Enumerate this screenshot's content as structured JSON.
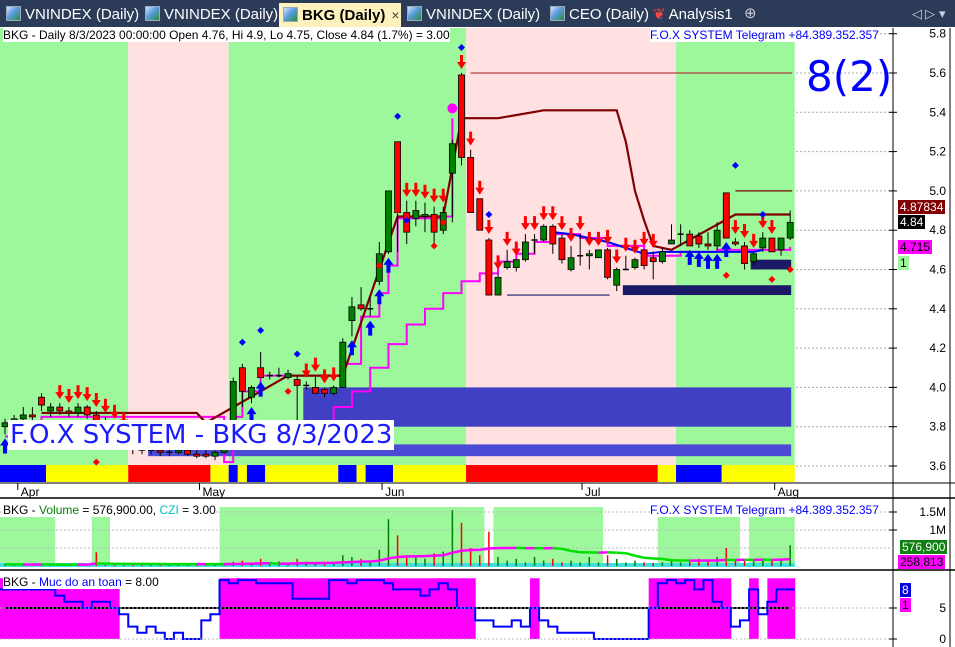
{
  "tabs": [
    {
      "label": "VNINDEX (Daily)",
      "active": false
    },
    {
      "label": "VNINDEX (Daily)",
      "active": false
    },
    {
      "label": "BKG (Daily)",
      "active": true
    },
    {
      "label": "VNINDEX (Daily)",
      "active": false
    },
    {
      "label": "CEO (Daily)",
      "active": false
    },
    {
      "label": "Analysis1",
      "active": false
    }
  ],
  "tab_close": "×",
  "tab_add": "⊕",
  "tab_nav": {
    "left": "◁",
    "right": "▷",
    "menu": "▾"
  },
  "price_panel": {
    "header": "BKG - Daily 8/3/2023 00:00:00 Open 4.76, Hi 4.9, Lo 4.75, Close 4.84 (1.7%)   = 3.00",
    "telegram": "F.O.X SYSTEM Telegram +84.389.352.357",
    "signal_big": "8(2)",
    "watermark": "F.O.X SYSTEM - BKG 8/3/2023",
    "labels": {
      "upper": "4.87834",
      "close": "4.84",
      "stop": "4.715",
      "count": "1"
    },
    "y_ticks": [
      "3.6",
      "3.8",
      "4.0",
      "4.2",
      "4.4",
      "4.6",
      "4.8",
      "5.0",
      "5.2",
      "5.4",
      "5.6",
      "5.8"
    ],
    "date_labels": [
      {
        "label": "Apr",
        "bar": 1.4
      },
      {
        "label": "May",
        "bar": 21.3
      },
      {
        "label": "Jun",
        "bar": 41.3
      },
      {
        "label": "Jul",
        "bar": 63.2
      },
      {
        "label": "Aug",
        "bar": 84.3
      }
    ]
  },
  "volume_panel": {
    "h_prefix": "BKG - ",
    "h_vol": "Volume",
    "h_mid": " = 576,900.00, ",
    "h_czi": "CZI",
    "h_end": " = 3.00",
    "telegram": "F.O.X SYSTEM Telegram +84.389.352.357",
    "labels": {
      "volume": "576,900",
      "ma": "258,813"
    },
    "y_ticks": [
      {
        "label": "1.5M",
        "v": 1500
      },
      {
        "label": "1M",
        "v": 1000
      }
    ]
  },
  "safety_panel": {
    "h_prefix": "BKG - ",
    "h_name": "Muc do an toan",
    "h_end": " = 8.00",
    "labels": {
      "value": "8",
      "flag": "1"
    },
    "y_ticks": [
      {
        "label": "0",
        "v": 0
      },
      {
        "label": "5",
        "v": 5
      }
    ]
  },
  "colors": {
    "up": "#008000",
    "down": "#ff0000",
    "bull_bg": "#9cf89a",
    "bear_bg": "#ffe1e1",
    "magenta": "#ff00ff",
    "darkred": "#800000",
    "blue": "#0000ff",
    "navy": "#1a1a66",
    "accent_text": "#0000ff"
  },
  "chart_data": {
    "type": "candlestick",
    "ylim": [
      3.55,
      5.85
    ],
    "ohlc": [
      [
        3.8,
        3.84,
        3.76,
        3.82
      ],
      [
        3.82,
        3.86,
        3.8,
        3.84
      ],
      [
        3.84,
        3.9,
        3.82,
        3.86
      ],
      [
        3.86,
        3.9,
        3.83,
        3.85
      ],
      [
        3.95,
        3.97,
        3.88,
        3.91
      ],
      [
        3.88,
        3.92,
        3.85,
        3.9
      ],
      [
        3.9,
        3.92,
        3.86,
        3.88
      ],
      [
        3.88,
        3.9,
        3.85,
        3.87
      ],
      [
        3.87,
        3.92,
        3.85,
        3.9
      ],
      [
        3.9,
        3.91,
        3.84,
        3.86
      ],
      [
        3.86,
        3.88,
        3.8,
        3.82
      ],
      [
        3.82,
        3.85,
        3.78,
        3.8
      ],
      [
        3.8,
        3.82,
        3.74,
        3.76
      ],
      [
        3.76,
        3.78,
        3.7,
        3.72
      ],
      [
        3.72,
        3.74,
        3.66,
        3.7
      ],
      [
        3.7,
        3.72,
        3.66,
        3.68
      ],
      [
        3.68,
        3.7,
        3.66,
        3.68
      ],
      [
        3.68,
        3.7,
        3.65,
        3.67
      ],
      [
        3.67,
        3.69,
        3.65,
        3.67
      ],
      [
        3.67,
        3.7,
        3.66,
        3.68
      ],
      [
        3.68,
        3.7,
        3.65,
        3.66
      ],
      [
        3.66,
        3.68,
        3.64,
        3.65
      ],
      [
        3.66,
        3.68,
        3.64,
        3.65
      ],
      [
        3.65,
        3.68,
        3.63,
        3.67
      ],
      [
        3.67,
        3.7,
        3.66,
        3.7
      ],
      [
        3.72,
        4.05,
        3.7,
        4.03
      ],
      [
        4.1,
        4.12,
        3.9,
        3.98
      ],
      [
        3.95,
        4.01,
        3.92,
        4.0
      ],
      [
        4.1,
        4.18,
        4.05,
        4.05
      ],
      [
        4.06,
        4.08,
        4.04,
        4.06
      ],
      [
        4.06,
        4.1,
        4.05,
        4.06
      ],
      [
        4.05,
        4.09,
        4.04,
        4.07
      ],
      [
        4.04,
        4.06,
        3.78,
        4.01
      ],
      [
        4.01,
        4.03,
        3.99,
        4.01
      ],
      [
        4.0,
        4.06,
        3.97,
        3.97
      ],
      [
        3.99,
        4.0,
        3.95,
        3.97
      ],
      [
        3.97,
        4.01,
        3.96,
        4.0
      ],
      [
        4.0,
        4.25,
        4.0,
        4.23
      ],
      [
        4.34,
        4.46,
        4.26,
        4.41
      ],
      [
        4.42,
        4.51,
        4.39,
        4.4
      ],
      [
        4.4,
        4.46,
        4.36,
        4.4
      ],
      [
        4.54,
        4.74,
        4.52,
        4.68
      ],
      [
        4.69,
        5.0,
        4.68,
        5.0
      ],
      [
        5.25,
        5.25,
        4.69,
        4.89
      ],
      [
        4.89,
        4.95,
        4.73,
        4.79
      ],
      [
        4.86,
        4.95,
        4.82,
        4.9
      ],
      [
        4.87,
        4.94,
        4.79,
        4.88
      ],
      [
        4.88,
        4.92,
        4.72,
        4.79
      ],
      [
        4.8,
        4.92,
        4.78,
        4.89
      ],
      [
        5.09,
        5.26,
        4.84,
        5.24
      ],
      [
        5.59,
        5.6,
        5.13,
        5.17
      ],
      [
        5.17,
        5.21,
        4.89,
        4.89
      ],
      [
        4.96,
        4.96,
        4.8,
        4.8
      ],
      [
        4.75,
        4.76,
        4.47,
        4.47
      ],
      [
        4.47,
        4.58,
        4.47,
        4.56
      ],
      [
        4.61,
        4.7,
        4.6,
        4.64
      ],
      [
        4.61,
        4.65,
        4.59,
        4.65
      ],
      [
        4.65,
        4.78,
        4.64,
        4.74
      ],
      [
        4.75,
        4.78,
        4.68,
        4.75
      ],
      [
        4.75,
        4.83,
        4.74,
        4.82
      ],
      [
        4.82,
        4.83,
        4.68,
        4.73
      ],
      [
        4.76,
        4.78,
        4.63,
        4.65
      ],
      [
        4.6,
        4.72,
        4.59,
        4.66
      ],
      [
        4.67,
        4.78,
        4.62,
        4.67
      ],
      [
        4.67,
        4.7,
        4.6,
        4.68
      ],
      [
        4.66,
        4.7,
        4.66,
        4.7
      ],
      [
        4.7,
        4.71,
        4.55,
        4.56
      ],
      [
        4.52,
        4.61,
        4.49,
        4.6
      ],
      [
        4.6,
        4.67,
        4.6,
        4.6
      ],
      [
        4.61,
        4.66,
        4.6,
        4.65
      ],
      [
        4.7,
        4.7,
        4.6,
        4.62
      ],
      [
        4.66,
        4.69,
        4.55,
        4.64
      ],
      [
        4.64,
        4.71,
        4.63,
        4.69
      ],
      [
        4.73,
        4.83,
        4.73,
        4.75
      ],
      [
        4.78,
        4.83,
        4.72,
        4.78
      ],
      [
        4.78,
        4.8,
        4.72,
        4.72
      ],
      [
        4.77,
        4.79,
        4.71,
        4.73
      ],
      [
        4.73,
        4.79,
        4.7,
        4.72
      ],
      [
        4.72,
        4.84,
        4.7,
        4.8
      ],
      [
        4.99,
        4.99,
        4.76,
        4.76
      ],
      [
        4.74,
        4.76,
        4.72,
        4.73
      ],
      [
        4.72,
        4.74,
        4.6,
        4.63
      ],
      [
        4.64,
        4.69,
        4.62,
        4.68
      ],
      [
        4.71,
        4.79,
        4.69,
        4.76
      ],
      [
        4.76,
        4.76,
        4.69,
        4.69
      ],
      [
        4.7,
        4.76,
        4.67,
        4.76
      ],
      [
        4.76,
        4.9,
        4.75,
        4.84
      ]
    ],
    "regime_bands": [
      {
        "from": 0,
        "to": 13,
        "state": "bull"
      },
      {
        "from": 14,
        "to": 24,
        "state": "bear"
      },
      {
        "from": 25,
        "to": 50,
        "state": "bull"
      },
      {
        "from": 51,
        "to": 73,
        "state": "bear"
      },
      {
        "from": 74,
        "to": 86,
        "state": "bull"
      }
    ],
    "trend_strip": [
      {
        "from": 0,
        "to": 4,
        "color": "#0000ff"
      },
      {
        "from": 5,
        "to": 13,
        "color": "#ffff00"
      },
      {
        "from": 14,
        "to": 22,
        "color": "#ff0000"
      },
      {
        "from": 23,
        "to": 24,
        "color": "#ffff00"
      },
      {
        "from": 25,
        "to": 25,
        "color": "#0000ff"
      },
      {
        "from": 26,
        "to": 26,
        "color": "#ffff00"
      },
      {
        "from": 27,
        "to": 28,
        "color": "#0000ff"
      },
      {
        "from": 29,
        "to": 36,
        "color": "#ffff00"
      },
      {
        "from": 37,
        "to": 38,
        "color": "#0000ff"
      },
      {
        "from": 39,
        "to": 39,
        "color": "#ffff00"
      },
      {
        "from": 40,
        "to": 42,
        "color": "#0000ff"
      },
      {
        "from": 43,
        "to": 50,
        "color": "#ffff00"
      },
      {
        "from": 51,
        "to": 71,
        "color": "#ff0000"
      },
      {
        "from": 72,
        "to": 73,
        "color": "#ffff00"
      },
      {
        "from": 74,
        "to": 78,
        "color": "#0000ff"
      },
      {
        "from": 79,
        "to": 86,
        "color": "#ffff00"
      }
    ],
    "zones": [
      {
        "from": 33,
        "to": 86,
        "top": 4.0,
        "bottom": 3.8,
        "color": "#4040c4"
      },
      {
        "from": 16,
        "to": 86,
        "top": 3.71,
        "bottom": 3.65,
        "color": "#4a4ad4"
      },
      {
        "from": 68,
        "to": 86,
        "top": 4.52,
        "bottom": 4.47,
        "color": "#1a1a66"
      },
      {
        "from": 82,
        "to": 86,
        "top": 4.65,
        "bottom": 4.6,
        "color": "#1a1a66"
      }
    ],
    "hlines": [
      {
        "from": 51,
        "to": 86,
        "price": 5.6,
        "color": "#b04040"
      },
      {
        "from": 80,
        "to": 86,
        "price": 5.0,
        "color": "#800000"
      },
      {
        "from": 55,
        "to": 66,
        "price": 4.47,
        "color": "#1a1a66"
      }
    ],
    "upper_line": [
      [
        4,
        3.87
      ],
      [
        21,
        3.87
      ],
      [
        22,
        3.82
      ],
      [
        31,
        4.06
      ],
      [
        37,
        4.06
      ],
      [
        43,
        4.87
      ],
      [
        48,
        4.87
      ],
      [
        50,
        5.37
      ],
      [
        54,
        5.37
      ],
      [
        59,
        5.41
      ],
      [
        67,
        5.41
      ],
      [
        68,
        5.25
      ],
      [
        69,
        5.0
      ],
      [
        70,
        4.85
      ],
      [
        71,
        4.72
      ],
      [
        73,
        4.7
      ],
      [
        80,
        4.88
      ],
      [
        86,
        4.88
      ]
    ],
    "trail_line": [
      [
        0,
        3.75
      ],
      [
        4,
        3.85
      ],
      [
        22,
        3.85
      ],
      [
        24,
        3.62
      ],
      [
        25,
        3.85
      ],
      [
        26,
        3.98
      ],
      [
        28,
        4.06
      ],
      [
        36,
        4.06
      ],
      [
        37,
        4.12
      ],
      [
        39,
        4.36
      ],
      [
        41,
        4.48
      ],
      [
        42,
        4.62
      ],
      [
        43,
        4.86
      ],
      [
        48,
        4.87
      ],
      [
        49,
        5.37
      ]
    ],
    "support_line": [
      [
        32,
        3.78
      ],
      [
        34,
        3.82
      ],
      [
        36,
        3.9
      ],
      [
        38,
        3.98
      ],
      [
        40,
        4.1
      ],
      [
        42,
        4.22
      ],
      [
        44,
        4.32
      ],
      [
        46,
        4.4
      ],
      [
        48,
        4.48
      ],
      [
        50,
        4.54
      ],
      [
        52,
        4.58
      ],
      [
        54,
        4.64
      ],
      [
        56,
        4.68
      ],
      [
        58,
        4.74
      ],
      [
        60,
        4.78
      ],
      [
        63,
        4.76
      ],
      [
        66,
        4.72
      ],
      [
        70,
        4.67
      ],
      [
        74,
        4.69
      ],
      [
        78,
        4.7
      ],
      [
        82,
        4.7
      ],
      [
        86,
        4.715
      ]
    ],
    "blue_line": [
      [
        60,
        4.79
      ],
      [
        62,
        4.78
      ],
      [
        64,
        4.76
      ],
      [
        66,
        4.74
      ],
      [
        68,
        4.71
      ],
      [
        70,
        4.68
      ],
      [
        72,
        4.69
      ],
      [
        82,
        4.69
      ],
      [
        83,
        4.7
      ]
    ],
    "sell_arrows": [
      6,
      7,
      8,
      9,
      10,
      11,
      12,
      13,
      14,
      15,
      33,
      34,
      35,
      36,
      44,
      45,
      46,
      47,
      48,
      50,
      51,
      52,
      53,
      54,
      55,
      56,
      57,
      58,
      59,
      60,
      61,
      62,
      63,
      64,
      65,
      66,
      67,
      68,
      69,
      70,
      71,
      80,
      81,
      82,
      83,
      84
    ],
    "buy_arrows": [
      0,
      2,
      3,
      27,
      28,
      38,
      40,
      41,
      42,
      75,
      76,
      77,
      78,
      79
    ],
    "blue_dots": [
      [
        26,
        4.23
      ],
      [
        28,
        4.29
      ],
      [
        32,
        4.17
      ],
      [
        43,
        5.38
      ],
      [
        44,
        4.85
      ],
      [
        50,
        5.73
      ],
      [
        53,
        4.88
      ],
      [
        80,
        5.13
      ],
      [
        83,
        4.88
      ]
    ],
    "red_dots": [
      [
        10,
        3.62
      ],
      [
        31,
        3.98
      ],
      [
        35,
        4.06
      ],
      [
        41,
        4.62
      ],
      [
        43,
        4.9
      ],
      [
        47,
        4.72
      ],
      [
        48,
        4.84
      ],
      [
        79,
        4.57
      ],
      [
        84,
        4.55
      ],
      [
        86,
        4.6
      ]
    ],
    "big_dot": [
      49,
      5.42
    ],
    "volume": [
      50,
      40,
      30,
      40,
      50,
      30,
      30,
      30,
      30,
      40,
      380,
      40,
      30,
      30,
      30,
      40,
      30,
      40,
      30,
      40,
      30,
      30,
      40,
      30,
      40,
      120,
      150,
      80,
      200,
      100,
      130,
      90,
      200,
      120,
      90,
      110,
      100,
      300,
      250,
      200,
      150,
      450,
      1300,
      850,
      300,
      250,
      200,
      350,
      400,
      1550,
      1200,
      500,
      300,
      950,
      250,
      150,
      200,
      100,
      250,
      150,
      200,
      100,
      150,
      100,
      250,
      100,
      300,
      200,
      100,
      150,
      100,
      80,
      100,
      150,
      100,
      120,
      200,
      150,
      250,
      500,
      150,
      200,
      130,
      200,
      150,
      200,
      577
    ],
    "volume_unit": "thousands",
    "volume_ylim": [
      0,
      1550
    ],
    "volume_bands": [
      {
        "from": 0,
        "to": 5,
        "tall": false
      },
      {
        "from": 10,
        "to": 11,
        "tall": false
      },
      {
        "from": 24,
        "to": 52,
        "tall": true
      },
      {
        "from": 54,
        "to": 65,
        "tall": true
      },
      {
        "from": 72,
        "to": 80,
        "tall": false
      },
      {
        "from": 82,
        "to": 86,
        "tall": false
      }
    ],
    "safety": [
      8,
      8,
      8,
      8,
      8,
      8,
      7,
      6,
      6,
      5,
      6,
      6,
      5,
      4,
      2,
      1,
      2,
      1,
      0,
      1,
      0,
      0,
      3,
      4,
      9.5,
      9,
      9.5,
      9.5,
      9,
      9,
      9,
      9,
      6.5,
      6.5,
      6.5,
      6.5,
      9.5,
      9.5,
      9,
      9.5,
      9.5,
      9.5,
      9,
      8,
      8,
      8,
      7,
      8,
      9,
      8,
      5,
      5,
      3,
      3,
      2,
      2,
      3,
      2,
      5,
      3,
      2,
      1,
      1,
      1,
      1,
      0,
      0,
      0,
      0,
      0,
      0,
      5,
      9,
      9.5,
      9,
      9.5,
      8,
      9.5,
      6,
      5,
      2,
      3,
      8,
      4,
      6,
      8,
      8
    ],
    "safety_threshold": 5,
    "safety_ylim": [
      0,
      10
    ]
  }
}
